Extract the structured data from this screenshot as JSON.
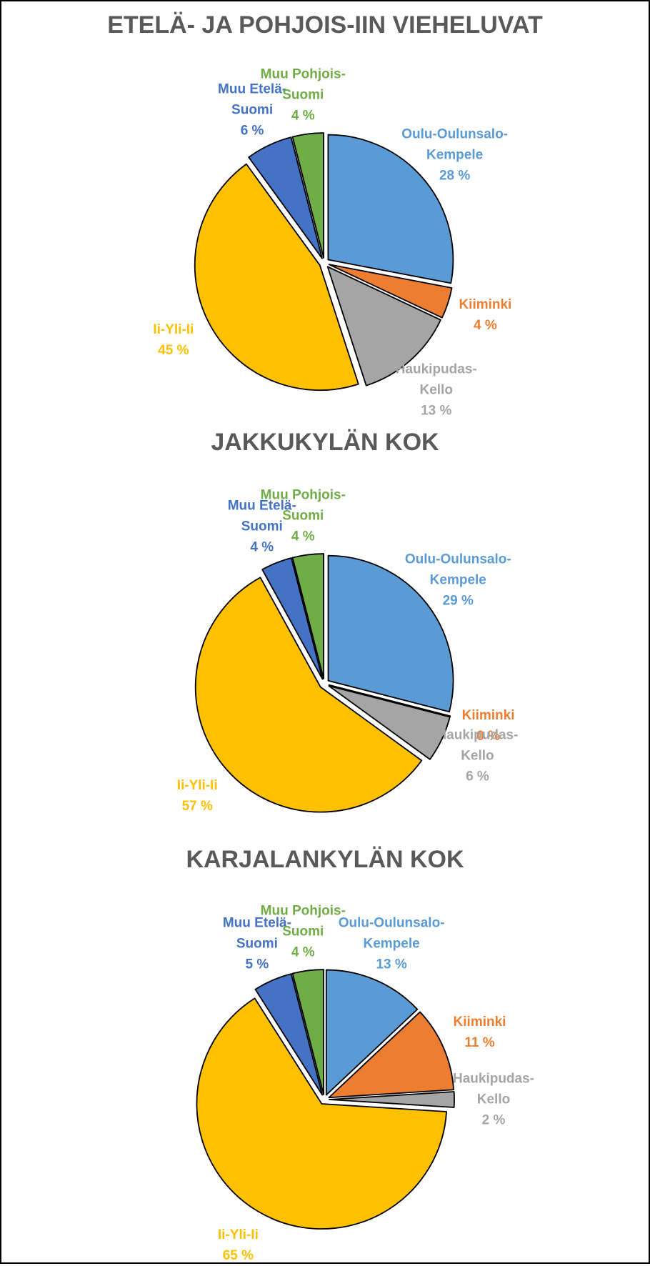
{
  "chart_data": [
    {
      "type": "pie",
      "title": "ETELÄ- JA POHJOIS-IIN VIEHELUVAT",
      "categories": [
        "Oulu-Oulunsalo-Kempele",
        "Kiiminki",
        "Haukipudas-Kello",
        "Ii-Yli-Ii",
        "Muu Etelä-Suomi",
        "Muu Pohjois-Suomi"
      ],
      "values": [
        28,
        4,
        13,
        45,
        6,
        4
      ],
      "value_labels": [
        "28 %",
        "4 %",
        "13 %",
        "45 %",
        "6 %",
        "4 %"
      ],
      "colors": [
        "#5b9bd5",
        "#ed7d31",
        "#a5a5a5",
        "#ffc000",
        "#4472c4",
        "#70ad47"
      ]
    },
    {
      "type": "pie",
      "title": "JAKKUKYLÄN KOK",
      "categories": [
        "Oulu-Oulunsalo-Kempele",
        "Kiiminki",
        "Haukipudas-Kello",
        "Ii-Yli-Ii",
        "Muu Etelä-Suomi",
        "Muu Pohjois-Suomi"
      ],
      "values": [
        29,
        0,
        6,
        57,
        4,
        4
      ],
      "value_labels": [
        "29 %",
        "0 %",
        "6 %",
        "57 %",
        "4 %",
        "4 %"
      ],
      "colors": [
        "#5b9bd5",
        "#ed7d31",
        "#a5a5a5",
        "#ffc000",
        "#4472c4",
        "#70ad47"
      ]
    },
    {
      "type": "pie",
      "title": "KARJALANKYLÄN KOK",
      "categories": [
        "Oulu-Oulunsalo-Kempele",
        "Kiiminki",
        "Haukipudas-Kello",
        "Ii-Yli-Ii",
        "Muu Etelä-Suomi",
        "Muu Pohjois-Suomi"
      ],
      "values": [
        13,
        11,
        2,
        65,
        5,
        4
      ],
      "value_labels": [
        "13 %",
        "11 %",
        "2 %",
        "65 %",
        "5 %",
        "4 %"
      ],
      "colors": [
        "#5b9bd5",
        "#ed7d31",
        "#a5a5a5",
        "#ffc000",
        "#4472c4",
        "#70ad47"
      ]
    }
  ]
}
